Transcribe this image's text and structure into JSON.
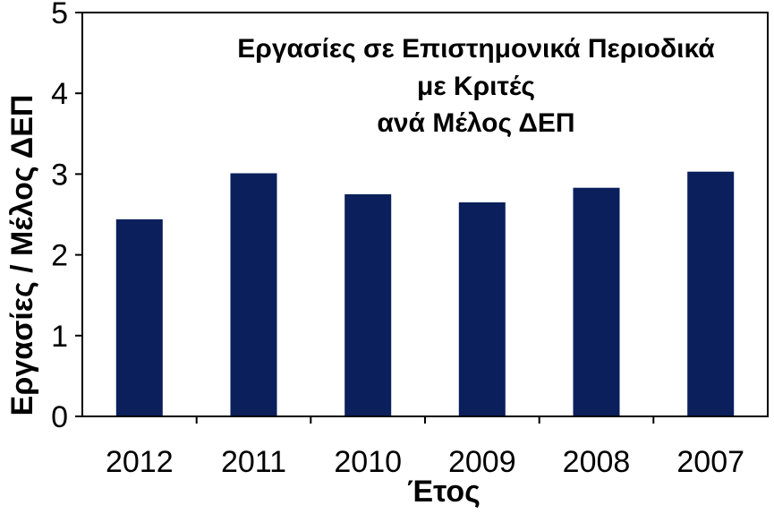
{
  "chart_data": {
    "type": "bar",
    "title_lines": [
      "Εργασίες σε Επιστημονικά Περιοδικά",
      "με Κριτές",
      "ανά Μέλος ΔΕΠ"
    ],
    "xlabel": "Έτος",
    "ylabel": "Εργασίες / Μέλος ΔΕΠ",
    "categories": [
      "2012",
      "2011",
      "2010",
      "2009",
      "2008",
      "2007"
    ],
    "values": [
      2.44,
      3.01,
      2.75,
      2.65,
      2.83,
      3.03
    ],
    "ylim": [
      0,
      5
    ],
    "yticks": [
      "0",
      "1",
      "2",
      "3",
      "4",
      "5"
    ],
    "grid": false,
    "legend": "none",
    "bar_color": "#0a1f5c",
    "axis_color": "#000000"
  }
}
